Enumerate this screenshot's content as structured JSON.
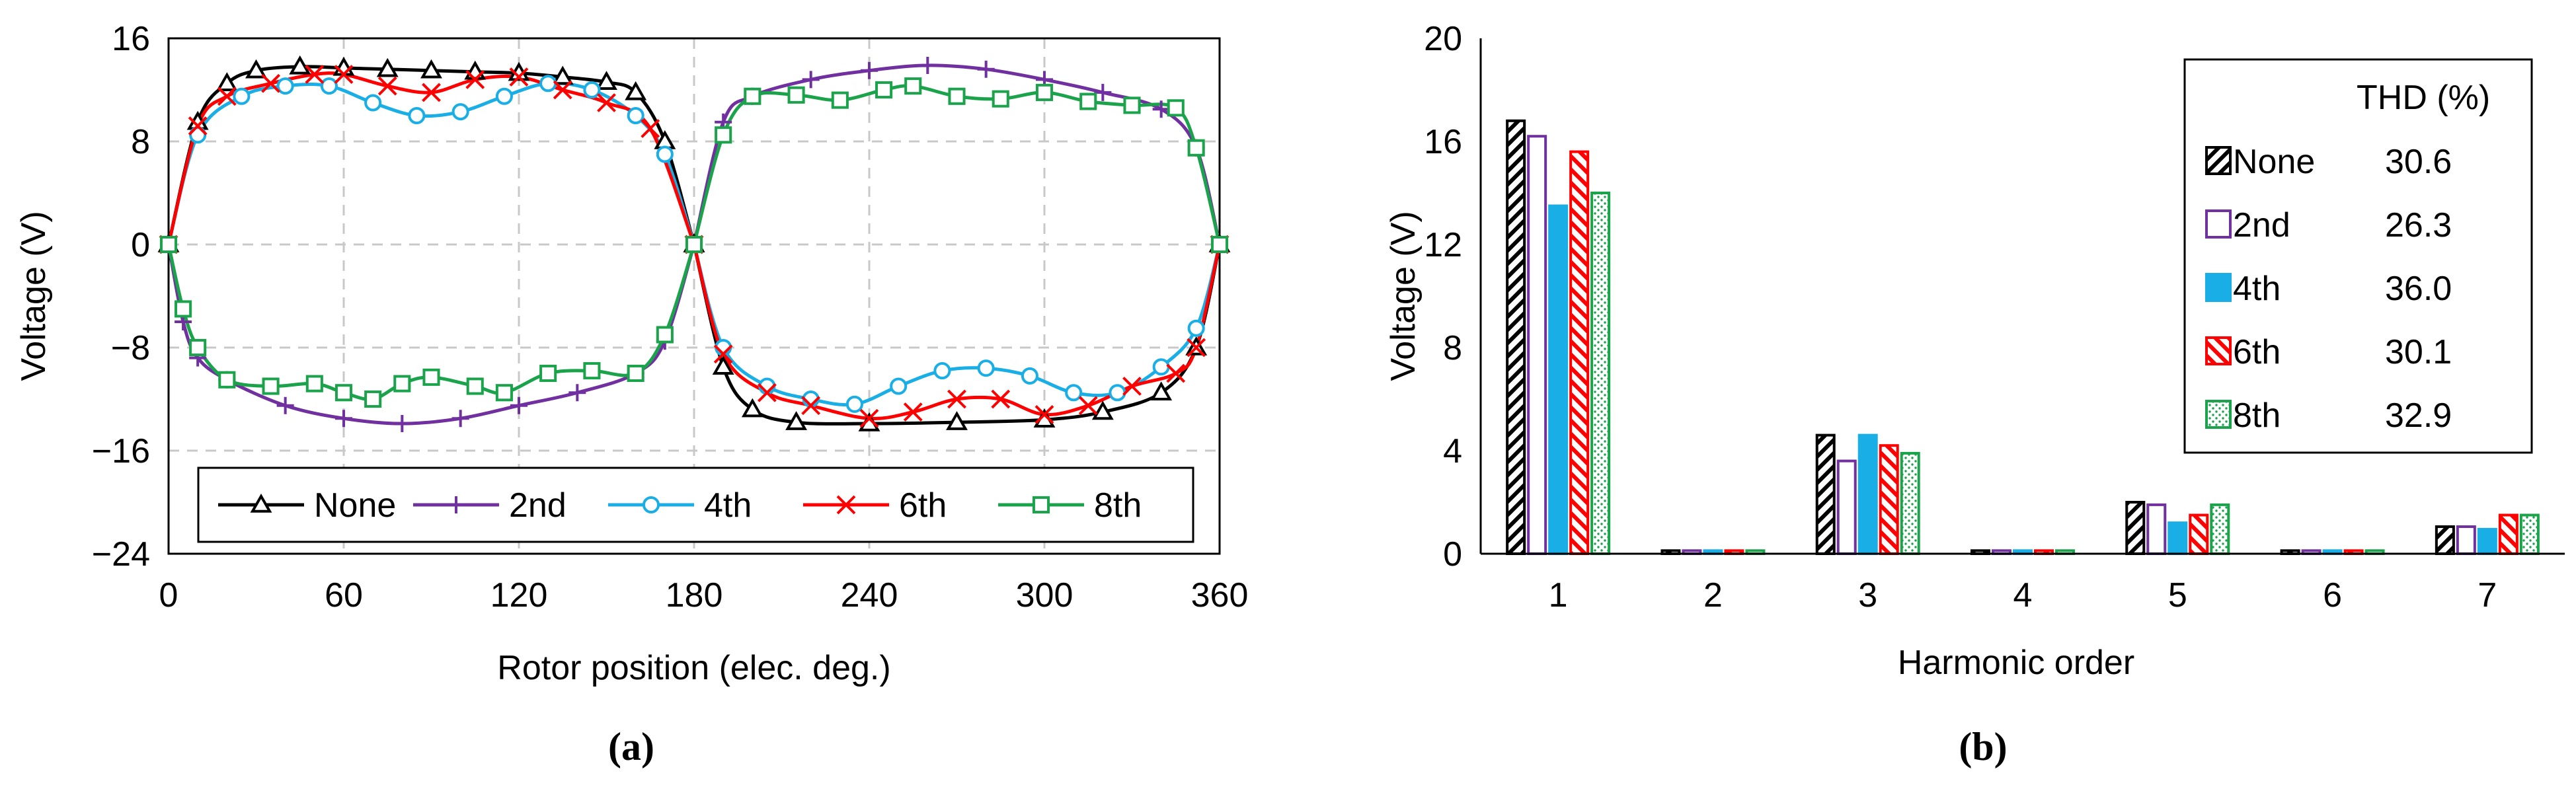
{
  "chart_data": [
    {
      "id": "a",
      "type": "line",
      "panel_label": "(a)",
      "xlabel": "Rotor position (elec. deg.)",
      "ylabel": "Voltage (V)",
      "xlim": [
        0,
        360
      ],
      "ylim": [
        -24,
        16
      ],
      "xticks": [
        "0",
        "60",
        "120",
        "180",
        "240",
        "300",
        "360"
      ],
      "yticks": [
        "16",
        "8",
        "0",
        "−8",
        "−16",
        "−24"
      ],
      "grid": true,
      "legend_position": "bottom",
      "series": [
        {
          "name": "None",
          "color": "#000000",
          "marker": "triangle",
          "phaseA": [
            [
              0,
              0
            ],
            [
              10,
              9.5
            ],
            [
              20,
              12.5
            ],
            [
              30,
              13.5
            ],
            [
              45,
              13.8
            ],
            [
              60,
              13.7
            ],
            [
              75,
              13.6
            ],
            [
              90,
              13.5
            ],
            [
              105,
              13.4
            ],
            [
              120,
              13.3
            ],
            [
              135,
              13
            ],
            [
              150,
              12.6
            ],
            [
              160,
              11.8
            ],
            [
              170,
              8
            ],
            [
              180,
              0
            ]
          ],
          "phaseB": [
            [
              180,
              0
            ],
            [
              190,
              -9.5
            ],
            [
              200,
              -12.8
            ],
            [
              215,
              -13.8
            ],
            [
              240,
              -13.9
            ],
            [
              270,
              -13.8
            ],
            [
              300,
              -13.6
            ],
            [
              320,
              -13
            ],
            [
              340,
              -11.5
            ],
            [
              352,
              -8
            ],
            [
              360,
              0
            ]
          ]
        },
        {
          "name": "2nd",
          "color": "#7030A0",
          "marker": "plus",
          "phaseA": [
            [
              0,
              0
            ],
            [
              5,
              -6
            ],
            [
              10,
              -8.8
            ],
            [
              20,
              -10.5
            ],
            [
              40,
              -12.5
            ],
            [
              60,
              -13.5
            ],
            [
              80,
              -13.9
            ],
            [
              100,
              -13.5
            ],
            [
              120,
              -12.5
            ],
            [
              140,
              -11.5
            ],
            [
              160,
              -10
            ],
            [
              170,
              -7.5
            ],
            [
              180,
              0
            ]
          ],
          "phaseB": [
            [
              180,
              0
            ],
            [
              190,
              9.5
            ],
            [
              200,
              11.5
            ],
            [
              220,
              12.8
            ],
            [
              240,
              13.5
            ],
            [
              260,
              13.9
            ],
            [
              280,
              13.6
            ],
            [
              300,
              12.8
            ],
            [
              320,
              11.8
            ],
            [
              340,
              10.5
            ],
            [
              352,
              7.5
            ],
            [
              360,
              0
            ]
          ]
        },
        {
          "name": "4th",
          "color": "#1AAEE6",
          "marker": "circle",
          "phaseA": [
            [
              0,
              0
            ],
            [
              10,
              8.5
            ],
            [
              25,
              11.5
            ],
            [
              40,
              12.3
            ],
            [
              55,
              12.3
            ],
            [
              70,
              11
            ],
            [
              85,
              10
            ],
            [
              100,
              10.3
            ],
            [
              115,
              11.5
            ],
            [
              130,
              12.5
            ],
            [
              145,
              12
            ],
            [
              160,
              10
            ],
            [
              170,
              7
            ],
            [
              180,
              0
            ]
          ],
          "phaseB": [
            [
              180,
              0
            ],
            [
              190,
              -8
            ],
            [
              205,
              -11
            ],
            [
              220,
              -12
            ],
            [
              235,
              -12.4
            ],
            [
              250,
              -11
            ],
            [
              265,
              -9.8
            ],
            [
              280,
              -9.6
            ],
            [
              295,
              -10.2
            ],
            [
              310,
              -11.5
            ],
            [
              325,
              -11.5
            ],
            [
              340,
              -9.5
            ],
            [
              352,
              -6.5
            ],
            [
              360,
              0
            ]
          ]
        },
        {
          "name": "6th",
          "color": "#FF0000",
          "marker": "x",
          "phaseA": [
            [
              0,
              0
            ],
            [
              10,
              9.2
            ],
            [
              20,
              11.5
            ],
            [
              35,
              12.5
            ],
            [
              50,
              13.2
            ],
            [
              60,
              13.2
            ],
            [
              75,
              12.3
            ],
            [
              90,
              11.8
            ],
            [
              105,
              12.8
            ],
            [
              120,
              13
            ],
            [
              135,
              12
            ],
            [
              150,
              11
            ],
            [
              165,
              9
            ],
            [
              180,
              0
            ]
          ],
          "phaseB": [
            [
              180,
              0
            ],
            [
              190,
              -8.5
            ],
            [
              205,
              -11.5
            ],
            [
              220,
              -12.5
            ],
            [
              240,
              -13.5
            ],
            [
              255,
              -13
            ],
            [
              270,
              -12
            ],
            [
              285,
              -12
            ],
            [
              300,
              -13.2
            ],
            [
              315,
              -12.5
            ],
            [
              330,
              -11
            ],
            [
              345,
              -10
            ],
            [
              352,
              -8
            ],
            [
              360,
              0
            ]
          ]
        },
        {
          "name": "8th",
          "color": "#1AA34A",
          "marker": "square",
          "phaseA": [
            [
              0,
              0
            ],
            [
              5,
              -5
            ],
            [
              10,
              -8
            ],
            [
              20,
              -10.5
            ],
            [
              35,
              -11
            ],
            [
              50,
              -10.8
            ],
            [
              60,
              -11.5
            ],
            [
              70,
              -12
            ],
            [
              80,
              -10.8
            ],
            [
              90,
              -10.3
            ],
            [
              105,
              -11
            ],
            [
              115,
              -11.5
            ],
            [
              130,
              -10
            ],
            [
              145,
              -9.8
            ],
            [
              160,
              -10
            ],
            [
              170,
              -7
            ],
            [
              180,
              0
            ]
          ],
          "phaseB": [
            [
              180,
              0
            ],
            [
              190,
              8.5
            ],
            [
              200,
              11.5
            ],
            [
              215,
              11.6
            ],
            [
              230,
              11.2
            ],
            [
              245,
              12
            ],
            [
              255,
              12.3
            ],
            [
              270,
              11.5
            ],
            [
              285,
              11.3
            ],
            [
              300,
              11.8
            ],
            [
              315,
              11.1
            ],
            [
              330,
              10.8
            ],
            [
              345,
              10.6
            ],
            [
              352,
              7.5
            ],
            [
              360,
              0
            ]
          ]
        }
      ]
    },
    {
      "id": "b",
      "type": "bar",
      "panel_label": "(b)",
      "xlabel": "Harmonic order",
      "ylabel": "Voltage (V)",
      "ylim": [
        0,
        20
      ],
      "yticks": [
        "0",
        "4",
        "8",
        "12",
        "16",
        "20"
      ],
      "categories": [
        "1",
        "2",
        "3",
        "4",
        "5",
        "6",
        "7"
      ],
      "grid": false,
      "legend_position": "top-right",
      "legend_header": "THD (%)",
      "series": [
        {
          "name": "None",
          "thd": "30.6",
          "color": "#000000",
          "pattern": "hatch-fwd",
          "values": [
            16.8,
            0.12,
            4.6,
            0.12,
            2.0,
            0.12,
            1.05
          ]
        },
        {
          "name": "2nd",
          "thd": "26.3",
          "color": "#7030A0",
          "pattern": "hollow",
          "values": [
            16.2,
            0.12,
            3.6,
            0.12,
            1.9,
            0.12,
            1.05
          ]
        },
        {
          "name": "4th",
          "thd": "36.0",
          "color": "#1AAEE6",
          "pattern": "solid",
          "values": [
            13.5,
            0.12,
            4.6,
            0.12,
            1.2,
            0.12,
            0.95
          ]
        },
        {
          "name": "6th",
          "thd": "30.1",
          "color": "#FF0000",
          "pattern": "hatch-back",
          "values": [
            15.6,
            0.12,
            4.2,
            0.12,
            1.5,
            0.12,
            1.5
          ]
        },
        {
          "name": "8th",
          "thd": "32.9",
          "color": "#1AA34A",
          "pattern": "dots",
          "values": [
            14.0,
            0.12,
            3.9,
            0.12,
            1.9,
            0.12,
            1.5
          ]
        }
      ]
    }
  ]
}
